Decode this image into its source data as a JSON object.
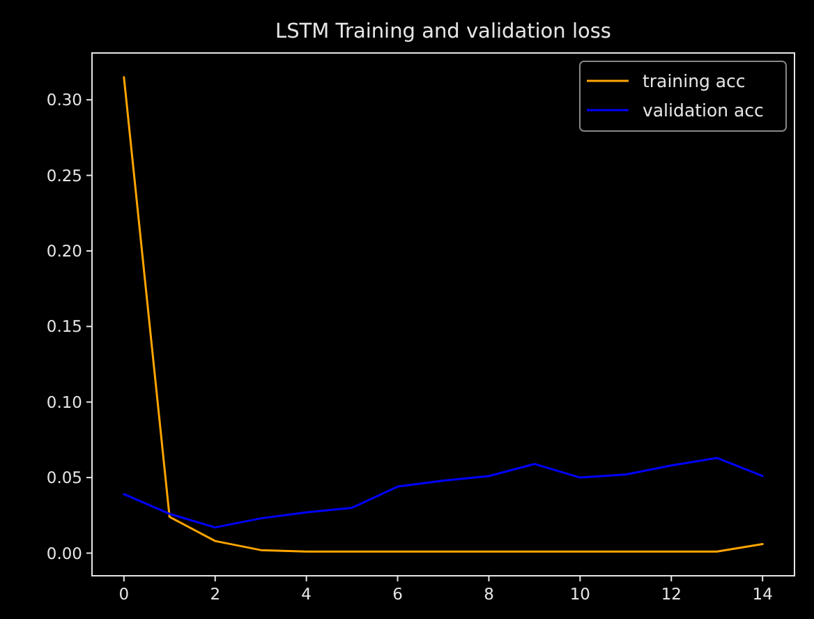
{
  "chart_data": {
    "type": "line",
    "title": "LSTM Training and validation loss",
    "x": [
      0,
      1,
      2,
      3,
      4,
      5,
      6,
      7,
      8,
      9,
      10,
      11,
      12,
      13,
      14
    ],
    "series": [
      {
        "name": "training acc",
        "color": "#ffa500",
        "values": [
          0.315,
          0.024,
          0.008,
          0.002,
          0.001,
          0.001,
          0.001,
          0.001,
          0.001,
          0.001,
          0.001,
          0.001,
          0.001,
          0.001,
          0.006
        ]
      },
      {
        "name": "validation acc",
        "color": "#0000ff",
        "values": [
          0.039,
          0.026,
          0.017,
          0.023,
          0.027,
          0.03,
          0.044,
          0.048,
          0.051,
          0.059,
          0.05,
          0.052,
          0.058,
          0.063,
          0.051
        ]
      }
    ],
    "xlim": [
      -0.7,
      14.7
    ],
    "xticks": [
      0,
      2,
      4,
      6,
      8,
      10,
      12,
      14
    ],
    "ylim": [
      -0.015,
      0.331
    ],
    "yticks": [
      {
        "value": 0,
        "label": "0.00"
      },
      {
        "value": 0.05,
        "label": "0.05"
      },
      {
        "value": 0.1,
        "label": "0.10"
      },
      {
        "value": 0.15,
        "label": "0.15"
      },
      {
        "value": 0.2,
        "label": "0.20"
      },
      {
        "value": 0.25,
        "label": "0.25"
      },
      {
        "value": 0.3,
        "label": "0.30"
      }
    ],
    "legend": "top right",
    "grid": false,
    "marker": "none",
    "line_style": "solid"
  }
}
